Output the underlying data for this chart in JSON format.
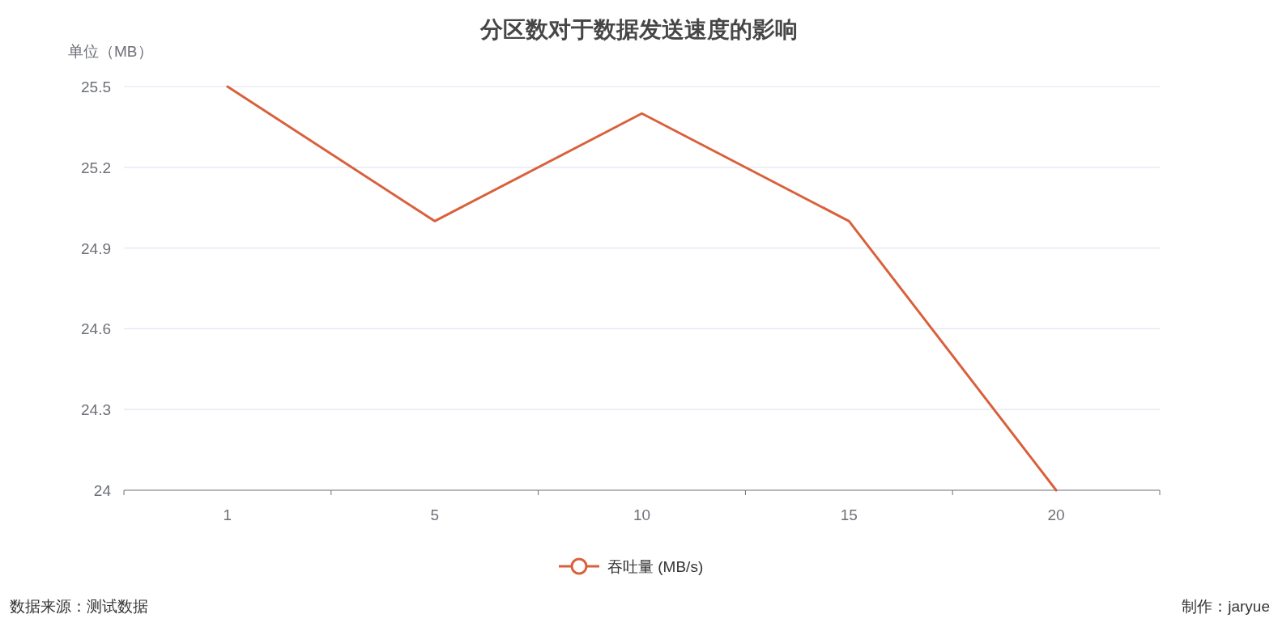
{
  "chart_data": {
    "type": "line",
    "title": "分区数对于数据发送速度的影响",
    "ylabel": "单位（MB）",
    "categories": [
      "1",
      "5",
      "10",
      "15",
      "20"
    ],
    "series": [
      {
        "name": "吞吐量 (MB/s)",
        "color": "#d9603b",
        "values": [
          25.5,
          25.0,
          25.4,
          25.0,
          24.0
        ]
      }
    ],
    "ylim": [
      24,
      25.5
    ],
    "yticks": [
      24,
      24.3,
      24.6,
      24.9,
      25.2,
      25.5
    ],
    "grid": "y",
    "legend": "bottom",
    "marker": "none",
    "line_style": "solid",
    "annotations": [
      "数据来源：测试数据",
      "制作：jaryue"
    ]
  }
}
